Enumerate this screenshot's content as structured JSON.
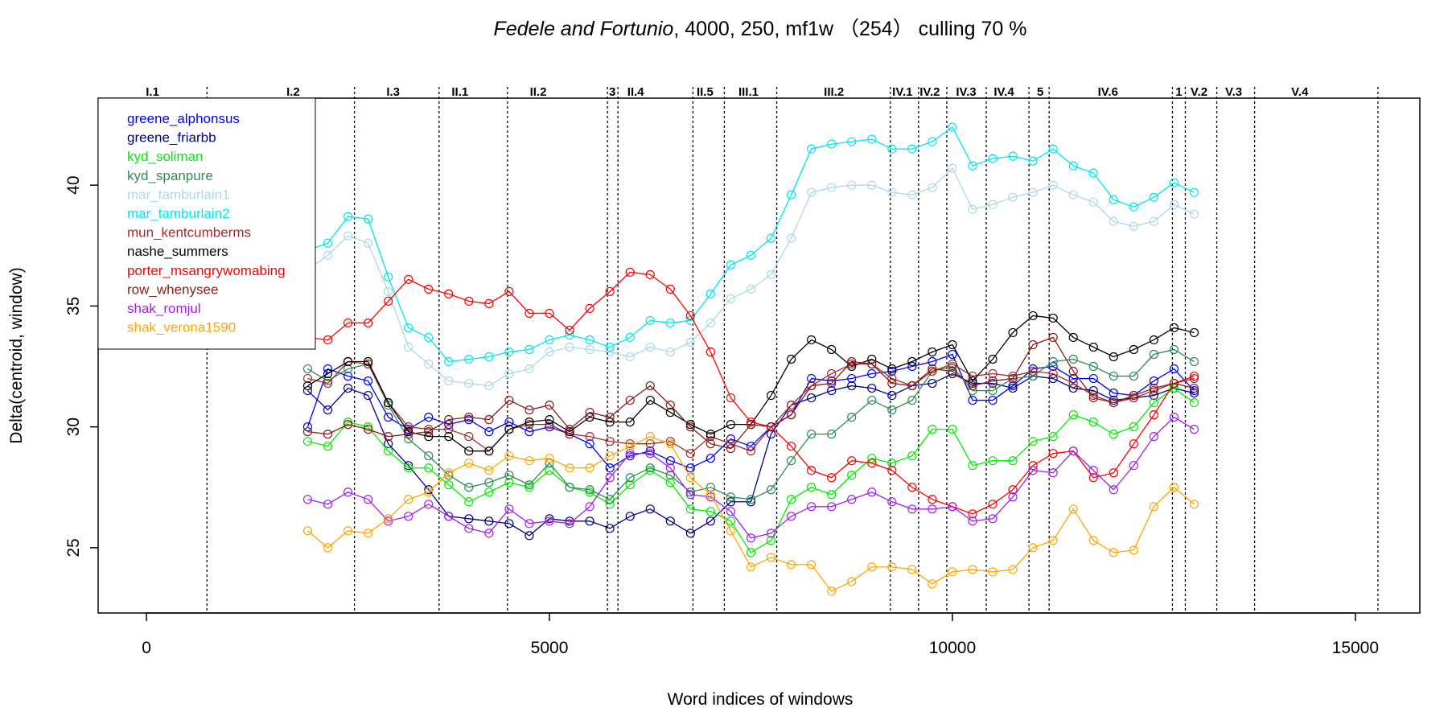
{
  "chart_data": {
    "type": "line",
    "title": {
      "italic": "Fedele and Fortunio",
      "rest": ", 4000, 250, mf1w （254） culling 70 %"
    },
    "xlabel": "Word indices of windows",
    "ylabel": "Delta(centroid, window)",
    "xlim": [
      -600,
      15800
    ],
    "ylim": [
      22.3,
      43.6
    ],
    "x_ticks": [
      0,
      5000,
      10000,
      15000
    ],
    "x_tick_labels": [
      "0",
      "5000",
      "10000",
      "15000"
    ],
    "y_ticks": [
      25,
      30,
      35,
      40
    ],
    "y_tick_labels": [
      "25",
      "30",
      "35",
      "40"
    ],
    "legend_position": "top-left",
    "scene_boundaries": [
      750,
      2580,
      3630,
      4480,
      5720,
      5850,
      6780,
      7170,
      7820,
      9230,
      9580,
      9930,
      10420,
      10950,
      11200,
      12730,
      12890,
      13280,
      13750,
      15280
    ],
    "scenes": [
      {
        "label": "I.1",
        "x": 75
      },
      {
        "label": "I.2",
        "x": 1820
      },
      {
        "label": "I.3",
        "x": 3060
      },
      {
        "label": "II.1",
        "x": 3890
      },
      {
        "label": "II.2",
        "x": 4860
      },
      {
        "label": "3",
        "x": 5780
      },
      {
        "label": "II.4",
        "x": 6070
      },
      {
        "label": "II.5",
        "x": 6930
      },
      {
        "label": "III.1",
        "x": 7470
      },
      {
        "label": "III.2",
        "x": 8530
      },
      {
        "label": "IV.1",
        "x": 9380
      },
      {
        "label": "IV.2",
        "x": 9720
      },
      {
        "label": "IV.3",
        "x": 10170
      },
      {
        "label": "IV.4",
        "x": 10640
      },
      {
        "label": "5",
        "x": 11090
      },
      {
        "label": "IV.6",
        "x": 11930
      },
      {
        "label": "1",
        "x": 12810
      },
      {
        "label": "V.2",
        "x": 13060
      },
      {
        "label": "V.3",
        "x": 13490
      },
      {
        "label": "V.4",
        "x": 14310
      }
    ],
    "x": [
      2000,
      2250,
      2500,
      2750,
      3000,
      3250,
      3500,
      3750,
      4000,
      4250,
      4500,
      4750,
      5000,
      5250,
      5500,
      5750,
      6000,
      6250,
      6500,
      6750,
      7000,
      7250,
      7500,
      7750,
      8000,
      8250,
      8500,
      8750,
      9000,
      9250,
      9500,
      9750,
      10000,
      10250,
      10500,
      10750,
      11000,
      11250,
      11500,
      11750,
      12000,
      12250,
      12500,
      12750,
      13000
    ],
    "series": [
      {
        "name": "greene_alphonsus",
        "color": "#0000ff",
        "values": [
          30.0,
          32.4,
          32.1,
          31.9,
          30.4,
          29.9,
          30.4,
          30.1,
          30.3,
          29.8,
          30.2,
          29.8,
          30.0,
          29.7,
          29.3,
          28.3,
          28.8,
          29.0,
          28.6,
          28.3,
          28.7,
          29.5,
          29.2,
          30.0,
          30.5,
          32.0,
          31.9,
          32.0,
          32.2,
          32.3,
          32.5,
          32.7,
          33.0,
          31.1,
          31.1,
          31.7,
          32.4,
          32.5,
          32.0,
          32.0,
          31.4,
          31.3,
          31.9,
          32.4,
          31.5
        ]
      },
      {
        "name": "greene_friarbb",
        "color": "#00008b",
        "values": [
          31.5,
          30.7,
          31.6,
          31.3,
          29.3,
          28.4,
          27.4,
          26.3,
          26.2,
          26.1,
          26.0,
          25.5,
          26.2,
          26.1,
          26.1,
          25.8,
          26.3,
          26.6,
          26.1,
          25.6,
          26.1,
          26.9,
          26.9,
          29.7,
          30.9,
          31.2,
          31.5,
          31.7,
          31.6,
          31.3,
          31.7,
          31.8,
          32.2,
          31.8,
          31.8,
          31.6,
          32.1,
          32.0,
          31.6,
          31.5,
          31.1,
          31.2,
          31.3,
          31.6,
          31.4
        ]
      },
      {
        "name": "kyd_soliman",
        "color": "#00ee00",
        "values": [
          29.4,
          29.2,
          30.2,
          30.0,
          29.0,
          28.3,
          28.3,
          27.6,
          26.9,
          27.3,
          27.7,
          27.5,
          28.2,
          27.5,
          27.3,
          26.8,
          27.6,
          28.2,
          27.7,
          26.6,
          26.5,
          26.1,
          24.8,
          25.3,
          27.0,
          27.5,
          27.2,
          28.0,
          28.7,
          28.5,
          28.8,
          29.9,
          29.9,
          28.4,
          28.6,
          28.6,
          29.4,
          29.6,
          30.5,
          30.2,
          29.7,
          30.0,
          31.0,
          31.6,
          31.0
        ]
      },
      {
        "name": "kyd_spanpure",
        "color": "#2e8b57",
        "values": [
          32.4,
          31.9,
          32.4,
          32.6,
          30.9,
          29.5,
          28.8,
          28.0,
          27.5,
          27.7,
          28.0,
          27.6,
          28.5,
          27.5,
          27.4,
          27.0,
          27.9,
          28.3,
          28.0,
          27.3,
          27.5,
          27.1,
          27.0,
          27.4,
          28.6,
          29.7,
          29.7,
          30.4,
          31.1,
          30.7,
          31.1,
          32.3,
          32.5,
          31.5,
          31.5,
          32.0,
          32.1,
          32.7,
          32.8,
          32.5,
          32.1,
          32.1,
          33.0,
          33.2,
          32.7
        ]
      },
      {
        "name": "mar_tamburlain1",
        "color": "#add8e6",
        "values": [
          36.5,
          37.1,
          37.9,
          37.6,
          35.6,
          33.3,
          32.6,
          31.9,
          31.8,
          31.7,
          32.2,
          32.4,
          33.1,
          33.3,
          33.2,
          33.1,
          32.9,
          33.3,
          33.1,
          33.5,
          34.3,
          35.3,
          35.7,
          36.3,
          37.8,
          39.7,
          39.9,
          40.0,
          40.0,
          39.7,
          39.6,
          39.9,
          40.7,
          39.0,
          39.2,
          39.5,
          39.7,
          40.0,
          39.6,
          39.3,
          38.5,
          38.3,
          38.5,
          39.2,
          38.8
        ]
      },
      {
        "name": "mar_tamburlain2",
        "color": "#00e5ee",
        "values": [
          37.3,
          37.6,
          38.7,
          38.6,
          36.2,
          34.1,
          33.7,
          32.7,
          32.8,
          32.9,
          33.1,
          33.2,
          33.6,
          33.8,
          33.6,
          33.3,
          33.7,
          34.4,
          34.3,
          34.4,
          35.5,
          36.7,
          37.1,
          37.8,
          39.6,
          41.5,
          41.7,
          41.8,
          41.9,
          41.5,
          41.5,
          41.8,
          42.4,
          40.8,
          41.1,
          41.2,
          41.0,
          41.5,
          40.8,
          40.5,
          39.4,
          39.1,
          39.5,
          40.1,
          39.7
        ]
      },
      {
        "name": "mun_kentcumberms",
        "color": "#a52a2a",
        "values": [
          32.0,
          31.8,
          32.7,
          32.6,
          31.0,
          30.0,
          29.9,
          29.9,
          29.6,
          29.0,
          29.9,
          30.1,
          30.1,
          29.7,
          29.6,
          29.4,
          29.3,
          29.3,
          29.4,
          28.9,
          29.6,
          29.3,
          29.0,
          30.0,
          30.9,
          31.7,
          32.2,
          32.6,
          32.6,
          32.0,
          31.7,
          32.3,
          32.6,
          32.1,
          32.2,
          32.1,
          32.3,
          32.2,
          31.8,
          31.3,
          31.0,
          31.2,
          31.5,
          31.8,
          32.0
        ]
      },
      {
        "name": "nashe_summers",
        "color": "#000000",
        "values": [
          31.7,
          32.2,
          32.7,
          32.7,
          31.0,
          29.8,
          29.6,
          29.6,
          29.0,
          29.0,
          29.9,
          30.2,
          30.3,
          29.8,
          30.4,
          30.2,
          30.2,
          31.1,
          30.6,
          30.1,
          29.7,
          30.1,
          30.1,
          31.3,
          32.8,
          33.6,
          33.2,
          32.5,
          32.8,
          32.4,
          32.7,
          33.1,
          33.4,
          31.9,
          32.8,
          33.9,
          34.6,
          34.5,
          33.7,
          33.3,
          32.9,
          33.2,
          33.6,
          34.1,
          33.9
        ]
      },
      {
        "name": "porter_msangrywomabing",
        "color": "#ff0000",
        "values": [
          33.7,
          33.6,
          34.3,
          34.3,
          35.2,
          36.1,
          35.7,
          35.5,
          35.2,
          35.1,
          35.6,
          34.7,
          34.7,
          34.0,
          34.9,
          35.6,
          36.4,
          36.3,
          35.7,
          34.6,
          33.1,
          31.2,
          30.2,
          30.0,
          29.2,
          28.2,
          27.9,
          28.6,
          28.5,
          28.2,
          27.5,
          27.0,
          26.7,
          26.4,
          26.8,
          27.4,
          28.4,
          28.9,
          29.0,
          27.9,
          28.1,
          29.3,
          30.5,
          31.8,
          32.1
        ]
      },
      {
        "name": "row_whenysee",
        "color": "#8b1a1a",
        "values": [
          29.8,
          29.7,
          30.1,
          29.9,
          29.6,
          29.7,
          29.8,
          30.3,
          30.4,
          30.3,
          31.1,
          30.7,
          30.9,
          29.9,
          30.6,
          30.4,
          31.1,
          31.7,
          30.9,
          30.0,
          29.3,
          29.1,
          30.1,
          30.0,
          30.5,
          31.7,
          31.8,
          32.7,
          32.6,
          31.8,
          31.7,
          32.4,
          32.3,
          31.7,
          31.9,
          32.0,
          33.4,
          33.7,
          32.3,
          31.2,
          31.0,
          31.3,
          31.6,
          31.8,
          31.6
        ]
      },
      {
        "name": "shak_romjul",
        "color": "#a020f0",
        "values": [
          27.0,
          26.8,
          27.3,
          27.0,
          26.1,
          26.3,
          26.8,
          26.3,
          25.8,
          25.6,
          26.6,
          26.0,
          26.1,
          26.0,
          26.7,
          27.9,
          28.9,
          28.9,
          28.3,
          27.2,
          27.1,
          26.5,
          25.4,
          25.6,
          26.3,
          26.7,
          26.7,
          27.0,
          27.3,
          26.9,
          26.6,
          26.6,
          26.7,
          26.1,
          26.2,
          27.1,
          28.2,
          28.1,
          29.0,
          28.2,
          27.4,
          28.4,
          29.6,
          30.4,
          29.9
        ]
      },
      {
        "name": "shak_verona1590",
        "color": "#ffa500",
        "values": [
          25.7,
          25.0,
          25.7,
          25.6,
          26.2,
          27.0,
          27.3,
          28.1,
          28.5,
          28.2,
          28.8,
          28.6,
          28.7,
          28.3,
          28.3,
          28.8,
          29.2,
          29.6,
          29.3,
          27.9,
          27.2,
          25.7,
          24.2,
          24.6,
          24.3,
          24.3,
          23.2,
          23.6,
          24.2,
          24.2,
          24.1,
          23.5,
          24.0,
          24.1,
          24.0,
          24.1,
          25.0,
          25.3,
          26.6,
          25.3,
          24.8,
          24.9,
          26.7,
          27.5,
          26.8
        ]
      }
    ]
  }
}
